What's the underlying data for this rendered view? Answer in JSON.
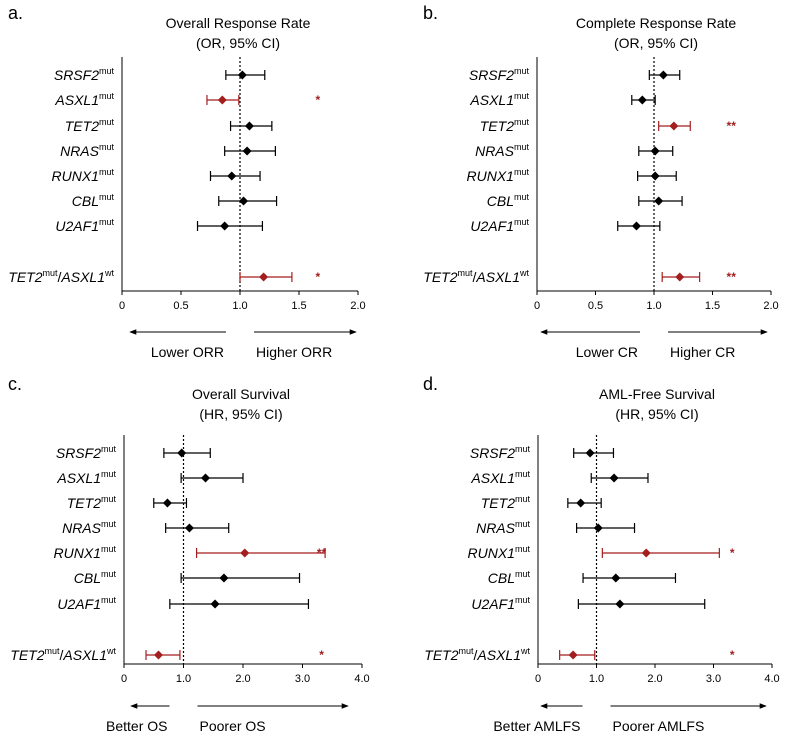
{
  "colors": {
    "normal": "#000000",
    "significant": "#a31f1f"
  },
  "chart_data": [
    {
      "type": "forest",
      "panel_label": "a.",
      "title": "Overall Response Rate",
      "subtitle": "(OR, 95% CI)",
      "xlim": [
        0,
        2.0
      ],
      "ref": 1.0,
      "ticks": [
        0,
        0.5,
        1.0,
        1.5,
        2.0
      ],
      "tick_labels": [
        "0",
        "0.5",
        "1.0",
        "1.5",
        "2.0"
      ],
      "left_arrow_label": "Lower ORR",
      "right_arrow_label": "Higher ORR",
      "rows": [
        {
          "gene": "SRSF2",
          "sup": "mut",
          "est": 1.02,
          "lo": 0.88,
          "hi": 1.21,
          "sig": ""
        },
        {
          "gene": "ASXL1",
          "sup": "mut",
          "est": 0.85,
          "lo": 0.72,
          "hi": 0.99,
          "sig": "*"
        },
        {
          "gene": "TET2",
          "sup": "mut",
          "est": 1.08,
          "lo": 0.92,
          "hi": 1.27,
          "sig": ""
        },
        {
          "gene": "NRAS",
          "sup": "mut",
          "est": 1.06,
          "lo": 0.87,
          "hi": 1.3,
          "sig": ""
        },
        {
          "gene": "RUNX1",
          "sup": "mut",
          "est": 0.93,
          "lo": 0.75,
          "hi": 1.17,
          "sig": ""
        },
        {
          "gene": "CBL",
          "sup": "mut",
          "est": 1.03,
          "lo": 0.82,
          "hi": 1.31,
          "sig": ""
        },
        {
          "gene": "U2AF1",
          "sup": "mut",
          "est": 0.87,
          "lo": 0.64,
          "hi": 1.19,
          "sig": ""
        },
        {
          "gene": "TET2",
          "sup": "mut",
          "gene2": "ASXL1",
          "sup2": "wt",
          "est": 1.2,
          "lo": 1.0,
          "hi": 1.44,
          "sig": "*"
        }
      ]
    },
    {
      "type": "forest",
      "panel_label": "b.",
      "title": "Complete Response Rate",
      "subtitle": "(OR, 95% CI)",
      "xlim": [
        0,
        2.0
      ],
      "ref": 1.0,
      "ticks": [
        0,
        0.5,
        1.0,
        1.5,
        2.0
      ],
      "tick_labels": [
        "0",
        "0.5",
        "1.0",
        "1.5",
        "2.0"
      ],
      "left_arrow_label": "Lower CR",
      "right_arrow_label": "Higher CR",
      "rows": [
        {
          "gene": "SRSF2",
          "sup": "mut",
          "est": 1.08,
          "lo": 0.96,
          "hi": 1.22,
          "sig": ""
        },
        {
          "gene": "ASXL1",
          "sup": "mut",
          "est": 0.9,
          "lo": 0.81,
          "hi": 1.01,
          "sig": ""
        },
        {
          "gene": "TET2",
          "sup": "mut",
          "est": 1.17,
          "lo": 1.04,
          "hi": 1.31,
          "sig": "**"
        },
        {
          "gene": "NRAS",
          "sup": "mut",
          "est": 1.01,
          "lo": 0.87,
          "hi": 1.16,
          "sig": ""
        },
        {
          "gene": "RUNX1",
          "sup": "mut",
          "est": 1.01,
          "lo": 0.86,
          "hi": 1.19,
          "sig": ""
        },
        {
          "gene": "CBL",
          "sup": "mut",
          "est": 1.04,
          "lo": 0.87,
          "hi": 1.24,
          "sig": ""
        },
        {
          "gene": "U2AF1",
          "sup": "mut",
          "est": 0.85,
          "lo": 0.69,
          "hi": 1.05,
          "sig": ""
        },
        {
          "gene": "TET2",
          "sup": "mut",
          "gene2": "ASXL1",
          "sup2": "wt",
          "est": 1.22,
          "lo": 1.07,
          "hi": 1.39,
          "sig": "**"
        }
      ]
    },
    {
      "type": "forest",
      "panel_label": "c.",
      "title": "Overall Survival",
      "subtitle": "(HR, 95% CI)",
      "xlim": [
        0,
        4.0
      ],
      "ref": 1.0,
      "ticks": [
        0,
        1.0,
        2.0,
        3.0,
        4.0
      ],
      "tick_labels": [
        "0",
        "1.0",
        "2.0",
        "3.0",
        "4.0"
      ],
      "left_arrow_label": "Better OS",
      "right_arrow_label": "Poorer OS",
      "rows": [
        {
          "gene": "SRSF2",
          "sup": "mut",
          "est": 0.97,
          "lo": 0.67,
          "hi": 1.45,
          "sig": ""
        },
        {
          "gene": "ASXL1",
          "sup": "mut",
          "est": 1.37,
          "lo": 0.96,
          "hi": 2.0,
          "sig": ""
        },
        {
          "gene": "TET2",
          "sup": "mut",
          "est": 0.73,
          "lo": 0.5,
          "hi": 1.05,
          "sig": ""
        },
        {
          "gene": "NRAS",
          "sup": "mut",
          "est": 1.1,
          "lo": 0.7,
          "hi": 1.76,
          "sig": ""
        },
        {
          "gene": "RUNX1",
          "sup": "mut",
          "est": 2.03,
          "lo": 1.22,
          "hi": 3.38,
          "sig": "**"
        },
        {
          "gene": "CBL",
          "sup": "mut",
          "est": 1.68,
          "lo": 0.96,
          "hi": 2.95,
          "sig": ""
        },
        {
          "gene": "U2AF1",
          "sup": "mut",
          "est": 1.53,
          "lo": 0.77,
          "hi": 3.1,
          "sig": ""
        },
        {
          "gene": "TET2",
          "sup": "mut",
          "gene2": "ASXL1",
          "sup2": "wt",
          "est": 0.58,
          "lo": 0.37,
          "hi": 0.94,
          "sig": "*"
        }
      ]
    },
    {
      "type": "forest",
      "panel_label": "d.",
      "title": "AML-Free Survival",
      "subtitle": "(HR, 95% CI)",
      "xlim": [
        0,
        4.0
      ],
      "ref": 1.0,
      "ticks": [
        0,
        1.0,
        2.0,
        3.0,
        4.0
      ],
      "tick_labels": [
        "0",
        "1.0",
        "2.0",
        "3.0",
        "4.0"
      ],
      "left_arrow_label": "Better AMLFS",
      "right_arrow_label": "Poorer AMLFS",
      "rows": [
        {
          "gene": "SRSF2",
          "sup": "mut",
          "est": 0.89,
          "lo": 0.61,
          "hi": 1.29,
          "sig": ""
        },
        {
          "gene": "ASXL1",
          "sup": "mut",
          "est": 1.3,
          "lo": 0.91,
          "hi": 1.88,
          "sig": ""
        },
        {
          "gene": "TET2",
          "sup": "mut",
          "est": 0.73,
          "lo": 0.51,
          "hi": 1.08,
          "sig": ""
        },
        {
          "gene": "NRAS",
          "sup": "mut",
          "est": 1.03,
          "lo": 0.66,
          "hi": 1.65,
          "sig": ""
        },
        {
          "gene": "RUNX1",
          "sup": "mut",
          "est": 1.85,
          "lo": 1.1,
          "hi": 3.1,
          "sig": "*"
        },
        {
          "gene": "CBL",
          "sup": "mut",
          "est": 1.33,
          "lo": 0.77,
          "hi": 2.35,
          "sig": ""
        },
        {
          "gene": "U2AF1",
          "sup": "mut",
          "est": 1.4,
          "lo": 0.69,
          "hi": 2.85,
          "sig": ""
        },
        {
          "gene": "TET2",
          "sup": "mut",
          "gene2": "ASXL1",
          "sup2": "wt",
          "est": 0.6,
          "lo": 0.37,
          "hi": 0.97,
          "sig": "*"
        }
      ]
    }
  ]
}
